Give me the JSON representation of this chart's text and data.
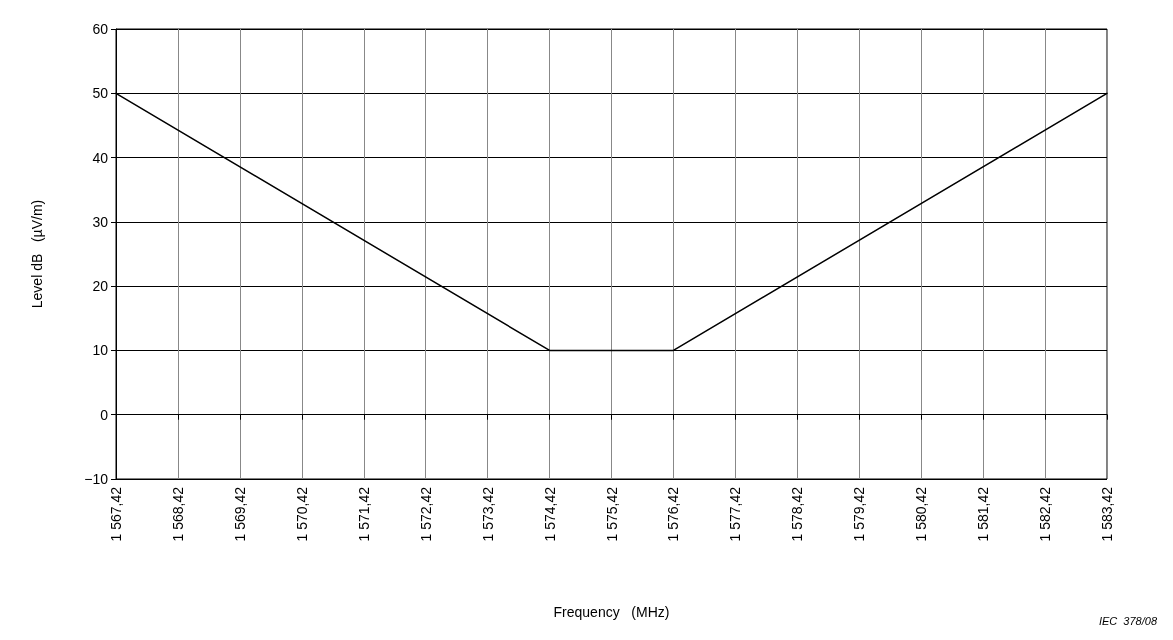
{
  "chart_data": {
    "type": "line",
    "xlabel": "Frequency   (MHz)",
    "ylabel": "Level dB   (µV/m)",
    "annotations": [
      "IEC  378/08"
    ],
    "x": [
      1567.42,
      1574.42,
      1576.42,
      1583.42
    ],
    "series": [
      {
        "color": "#000000",
        "values": [
          50,
          10,
          10,
          50
        ]
      }
    ],
    "xlim": [
      1567.42,
      1583.42
    ],
    "xticks": [
      {
        "value": 1567.42,
        "label": "1 567,42"
      },
      {
        "value": 1568.42,
        "label": "1 568,42"
      },
      {
        "value": 1569.42,
        "label": "1 569,42"
      },
      {
        "value": 1570.42,
        "label": "1 570,42"
      },
      {
        "value": 1571.42,
        "label": "1 571,42"
      },
      {
        "value": 1572.42,
        "label": "1 572,42"
      },
      {
        "value": 1573.42,
        "label": "1 573,42"
      },
      {
        "value": 1574.42,
        "label": "1 574,42"
      },
      {
        "value": 1575.42,
        "label": "1 575,42"
      },
      {
        "value": 1576.42,
        "label": "1 576,42"
      },
      {
        "value": 1577.42,
        "label": "1 577,42"
      },
      {
        "value": 1578.42,
        "label": "1 578,42"
      },
      {
        "value": 1579.42,
        "label": "1 579,42"
      },
      {
        "value": 1580.42,
        "label": "1 580,42"
      },
      {
        "value": 1581.42,
        "label": "1 581,42"
      },
      {
        "value": 1582.42,
        "label": "1 582,42"
      },
      {
        "value": 1583.42,
        "label": "1 583,42"
      }
    ],
    "ylim": [
      -10,
      60
    ],
    "yticks": [
      {
        "value": -10,
        "label": "−10"
      },
      0,
      10,
      20,
      30,
      40,
      50,
      60
    ],
    "grid": true,
    "marker": "none",
    "line_style": "solid"
  }
}
